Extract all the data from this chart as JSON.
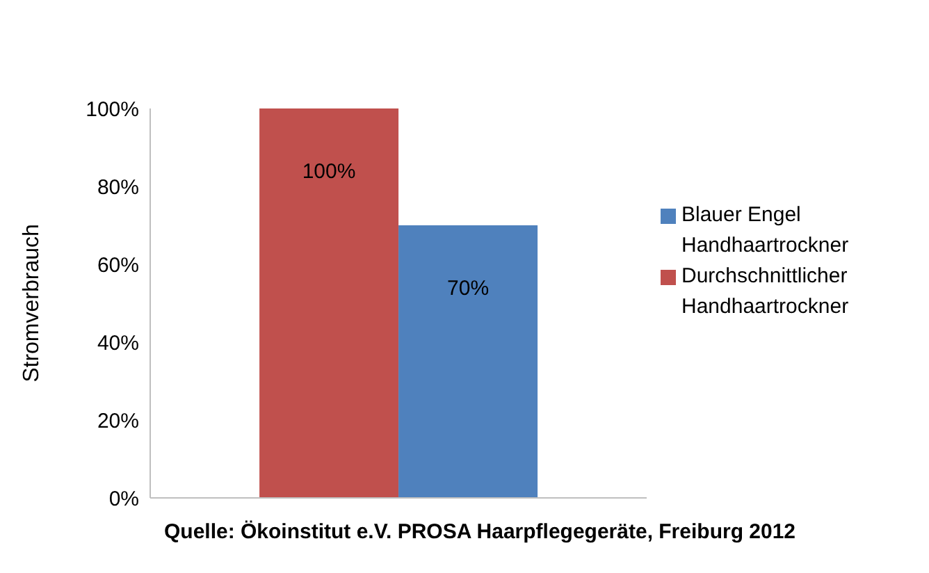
{
  "chart_data": {
    "type": "bar",
    "categories": [
      null
    ],
    "series": [
      {
        "name": "Durchschnittlicher Handhaartrockner",
        "color": "#c0504d",
        "values": [
          100
        ],
        "value_labels": [
          "100%"
        ]
      },
      {
        "name": "Blauer Engel Handhaartrockner",
        "color": "#4f81bd",
        "values": [
          70
        ],
        "value_labels": [
          "70%"
        ]
      }
    ],
    "ylabel": "Stromverbrauch",
    "ylim": [
      0,
      100
    ],
    "yticks": [
      {
        "value": 0,
        "label": "0%"
      },
      {
        "value": 20,
        "label": "20%"
      },
      {
        "value": 40,
        "label": "40%"
      },
      {
        "value": 60,
        "label": "60%"
      },
      {
        "value": 80,
        "label": "80%"
      },
      {
        "value": 100,
        "label": "100%"
      }
    ],
    "grid": false,
    "legend": "right",
    "annotations": [
      "Quelle: Ökoinstitut e.V. PROSA Haarpflegegeräte, Freiburg 2012"
    ]
  }
}
